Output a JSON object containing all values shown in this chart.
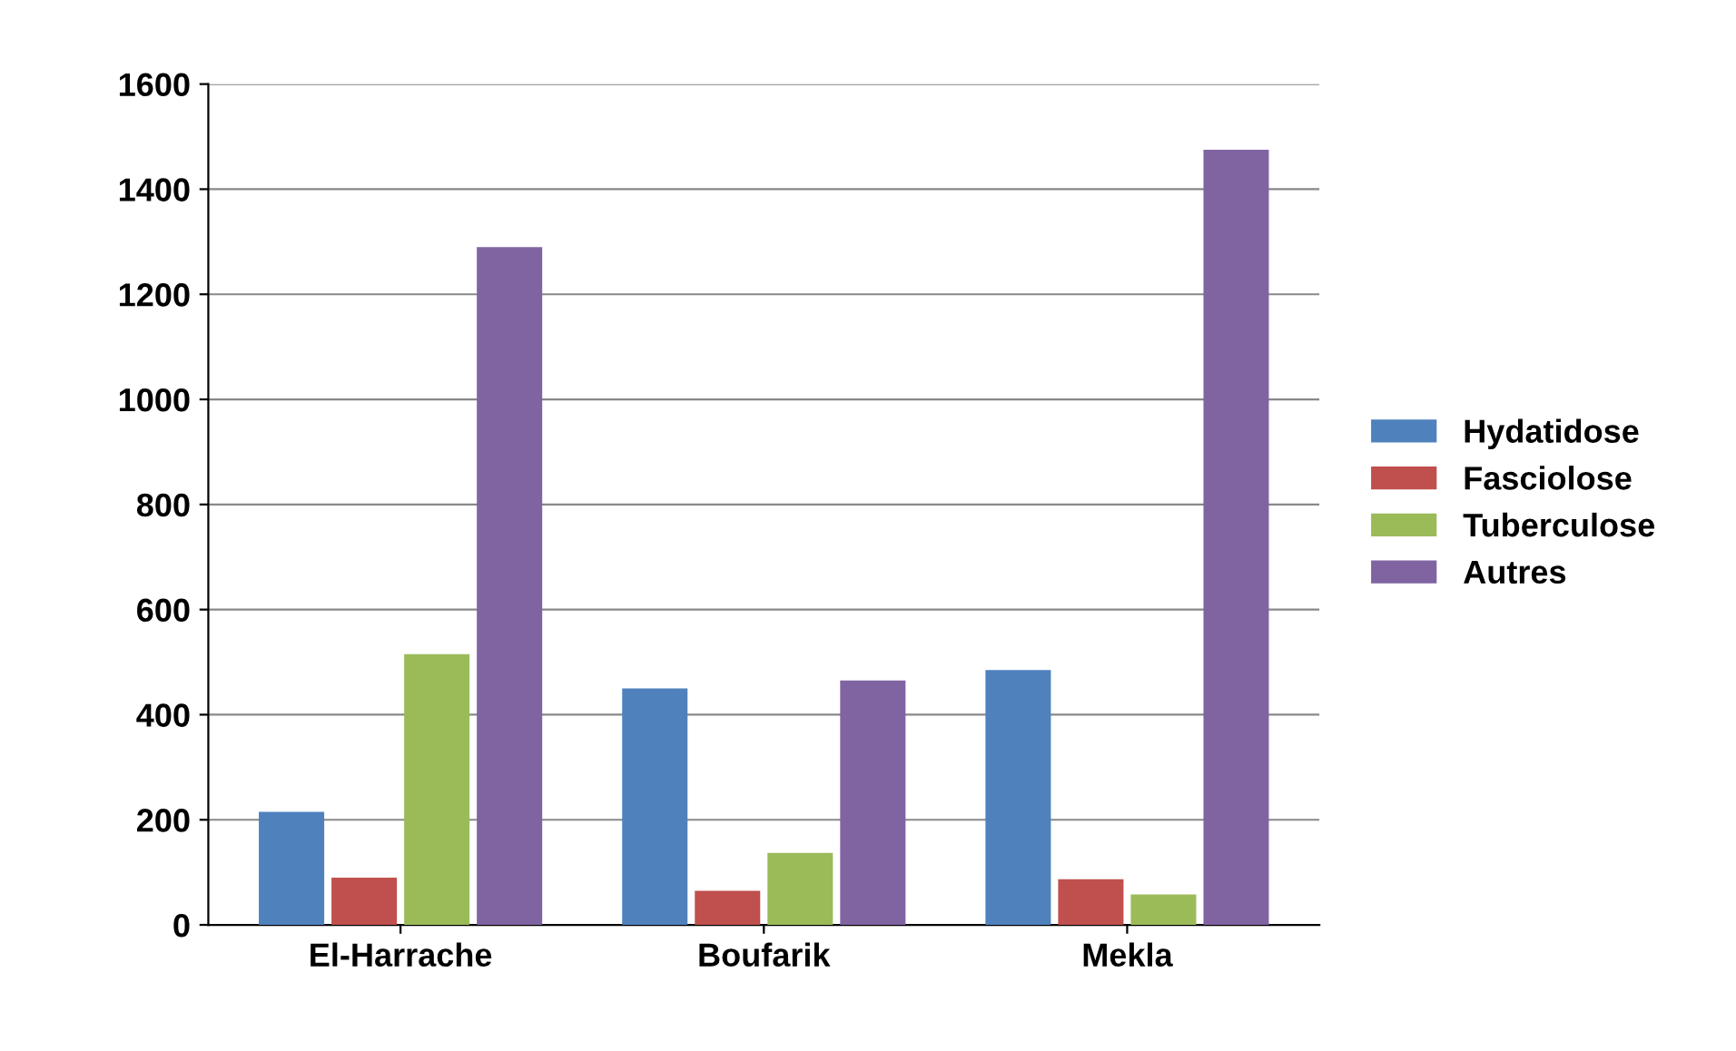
{
  "chart_data": {
    "type": "bar",
    "categories": [
      "El-Harrache",
      "Boufarik",
      "Mekla"
    ],
    "series": [
      {
        "name": "Hydatidose",
        "color": "#4f81bd",
        "values": [
          215,
          450,
          485
        ]
      },
      {
        "name": "Fasciolose",
        "color": "#c0504d",
        "values": [
          90,
          65,
          87
        ]
      },
      {
        "name": "Tuberculose",
        "color": "#9bbb59",
        "values": [
          515,
          137,
          58
        ]
      },
      {
        "name": "Autres",
        "color": "#8064a2",
        "values": [
          1290,
          465,
          1475
        ]
      }
    ],
    "ylim": [
      0,
      1600
    ],
    "yticks": [
      0,
      200,
      400,
      600,
      800,
      1000,
      1200,
      1400,
      1600
    ],
    "grid": "y",
    "legend": "right"
  }
}
